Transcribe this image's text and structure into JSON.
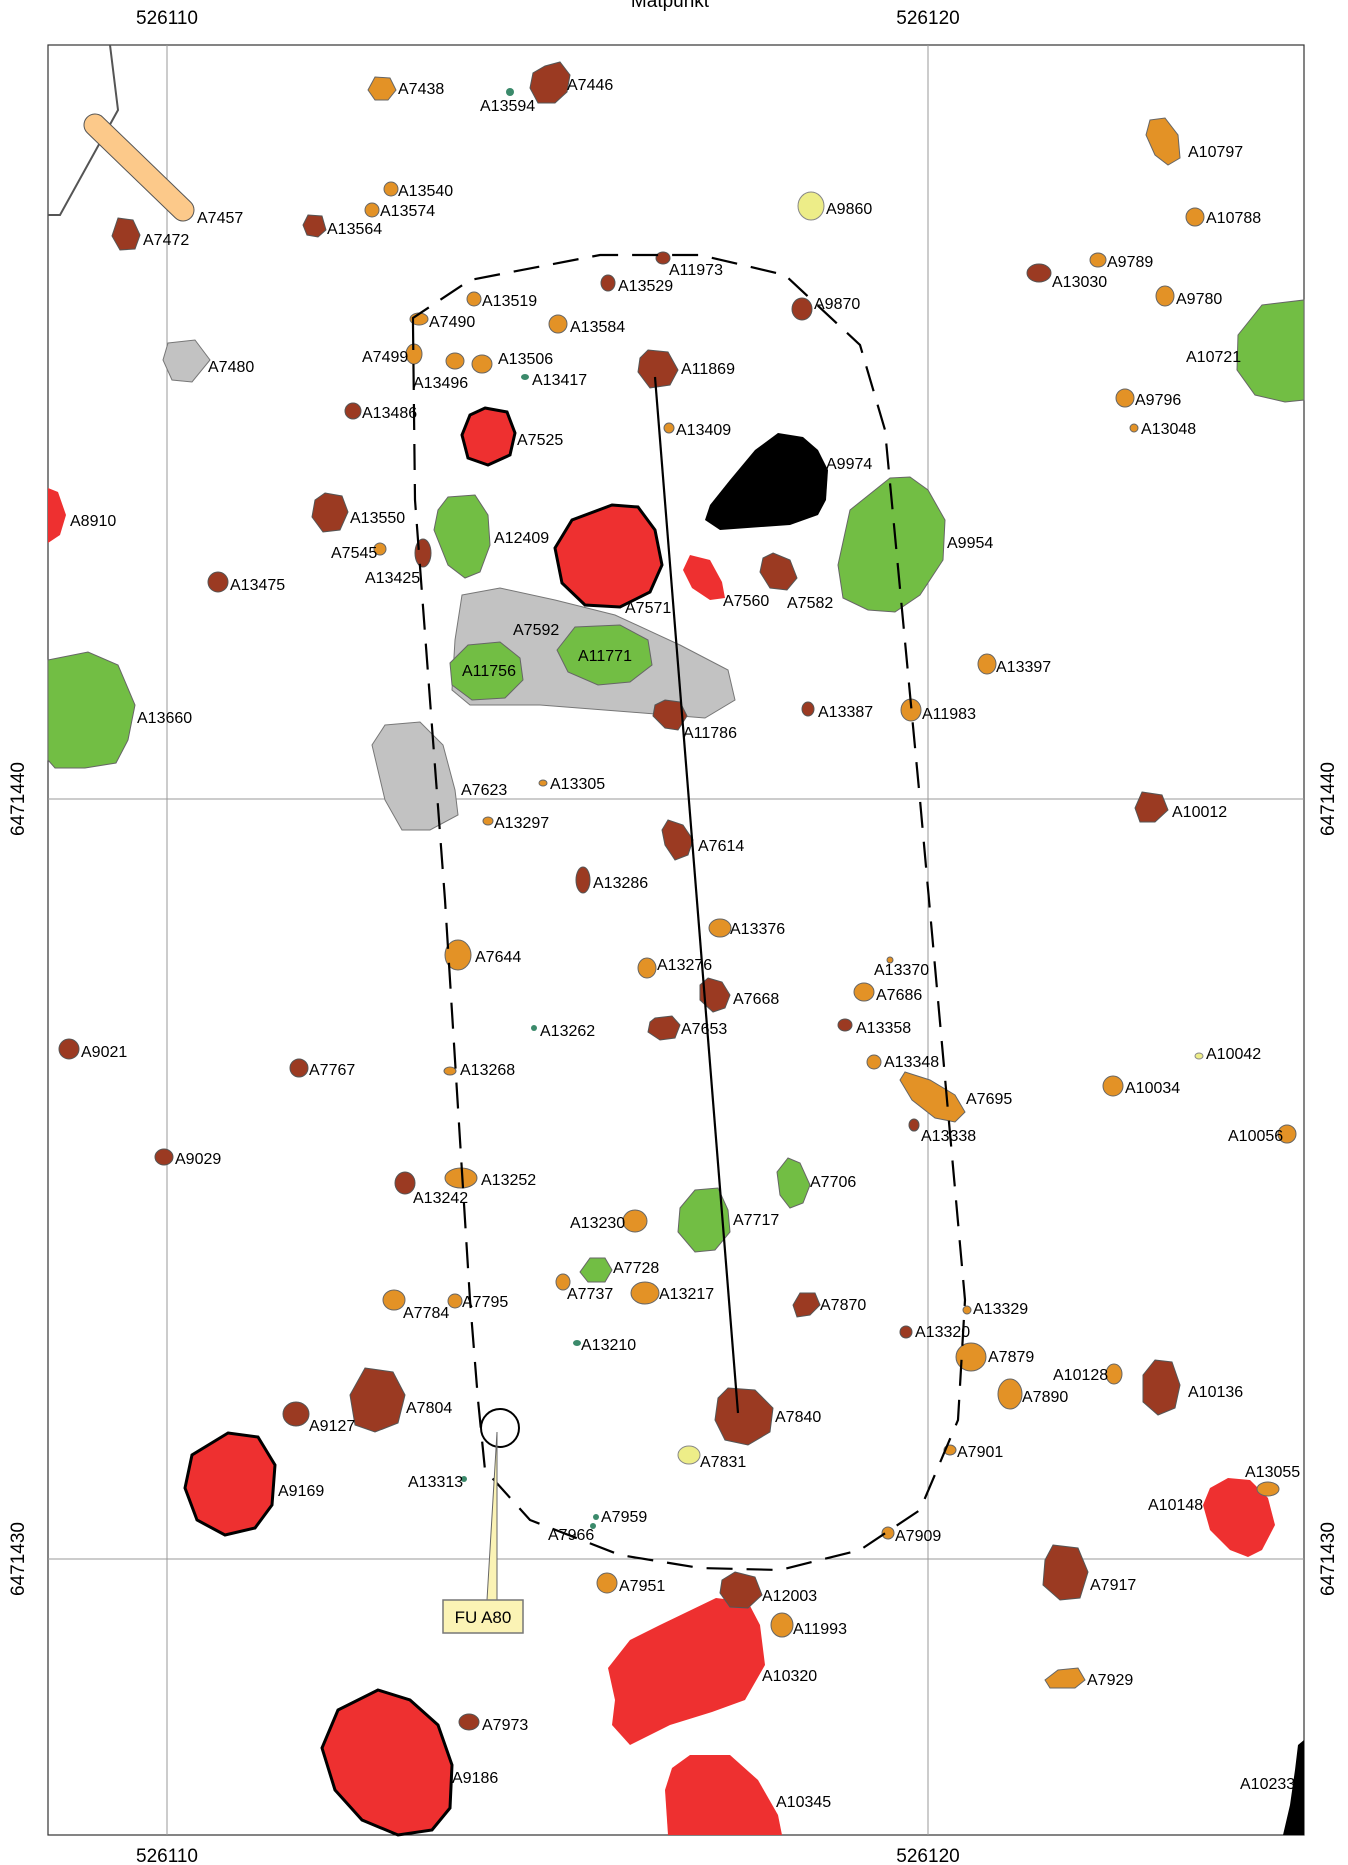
{
  "map": {
    "header_text": "Mätpunkt",
    "x_ticks": [
      "526110",
      "526120"
    ],
    "y_ticks": [
      "6471440",
      "6471430"
    ],
    "callout": "FU A80",
    "colors": {
      "brown": "#9b3a22",
      "orange": "#e39226",
      "red": "#ee3030",
      "green": "#72be44",
      "gray": "#c2c2c2",
      "yellow": "#eded88",
      "teal": "#3b8a6b",
      "black": "#000000",
      "callout_fill": "#fbf3b5"
    }
  },
  "labels": {
    "A7438": "A7438",
    "A13594": "A13594",
    "A7446": "A7446",
    "A10797": "A10797",
    "A13540": "A13540",
    "A13574": "A13574",
    "A7457": "A7457",
    "A7472": "A7472",
    "A13564": "A13564",
    "A9860": "A9860",
    "A10788": "A10788",
    "A11973": "A11973",
    "A9789": "A9789",
    "A13030": "A13030",
    "A13529": "A13529",
    "A13519": "A13519",
    "A9780": "A9780",
    "A9870": "A9870",
    "A7490": "A7490",
    "A13584": "A13584",
    "A10721": "A10721",
    "A7499": "A7499",
    "A13506": "A13506",
    "A7480": "A7480",
    "A11869": "A11869",
    "A13496": "A13496",
    "A13417": "A13417",
    "A9796": "A9796",
    "A13486": "A13486",
    "A13048": "A13048",
    "A13409": "A13409",
    "A7525": "A7525",
    "A9974": "A9974",
    "A8910": "A8910",
    "A13550": "A13550",
    "A12409": "A12409",
    "A7545": "A7545",
    "A9954": "A9954",
    "A13425": "A13425",
    "A13475": "A13475",
    "A7560": "A7560",
    "A7582": "A7582",
    "A7571": "A7571",
    "A7592": "A7592",
    "A11771": "A11771",
    "A11756": "A11756",
    "A13397": "A13397",
    "A13660": "A13660",
    "A13387": "A13387",
    "A11983": "A11983",
    "A11786": "A11786",
    "A7623": "A7623",
    "A13305": "A13305",
    "A10012": "A10012",
    "A13297": "A13297",
    "A7614": "A7614",
    "A13286": "A13286",
    "A13376": "A13376",
    "A7644": "A7644",
    "A13276": "A13276",
    "A13370": "A13370",
    "A7668": "A7668",
    "A7686": "A7686",
    "A13262": "A13262",
    "A7653": "A7653",
    "A13358": "A13358",
    "A9021": "A9021",
    "A10042": "A10042",
    "A7767": "A7767",
    "A13268": "A13268",
    "A13348": "A13348",
    "A10034": "A10034",
    "A7695": "A7695",
    "A13338": "A13338",
    "A10056": "A10056",
    "A9029": "A9029",
    "A13252": "A13252",
    "A7706": "A7706",
    "A13242": "A13242",
    "A13230": "A13230",
    "A7717": "A7717",
    "A7728": "A7728",
    "A7737": "A7737",
    "A13217": "A13217",
    "A7870": "A7870",
    "A7795": "A7795",
    "A7784": "A7784",
    "A13329": "A13329",
    "A13210": "A13210",
    "A13320": "A13320",
    "A7879": "A7879",
    "A10128": "A10128",
    "A10136": "A10136",
    "A7890": "A7890",
    "A7804": "A7804",
    "A9127": "A9127",
    "A7840": "A7840",
    "A7901": "A7901",
    "A7831": "A7831",
    "A9169": "A9169",
    "A13313": "A13313",
    "A13055": "A13055",
    "A10148": "A10148",
    "A7959": "A7959",
    "A7966": "A7966",
    "A7909": "A7909",
    "A7951": "A7951",
    "A12003": "A12003",
    "A7917": "A7917",
    "A11993": "A11993",
    "A10320": "A10320",
    "A7929": "A7929",
    "A7973": "A7973",
    "A9186": "A9186",
    "A10345": "A10345",
    "A10233": "A10233"
  }
}
